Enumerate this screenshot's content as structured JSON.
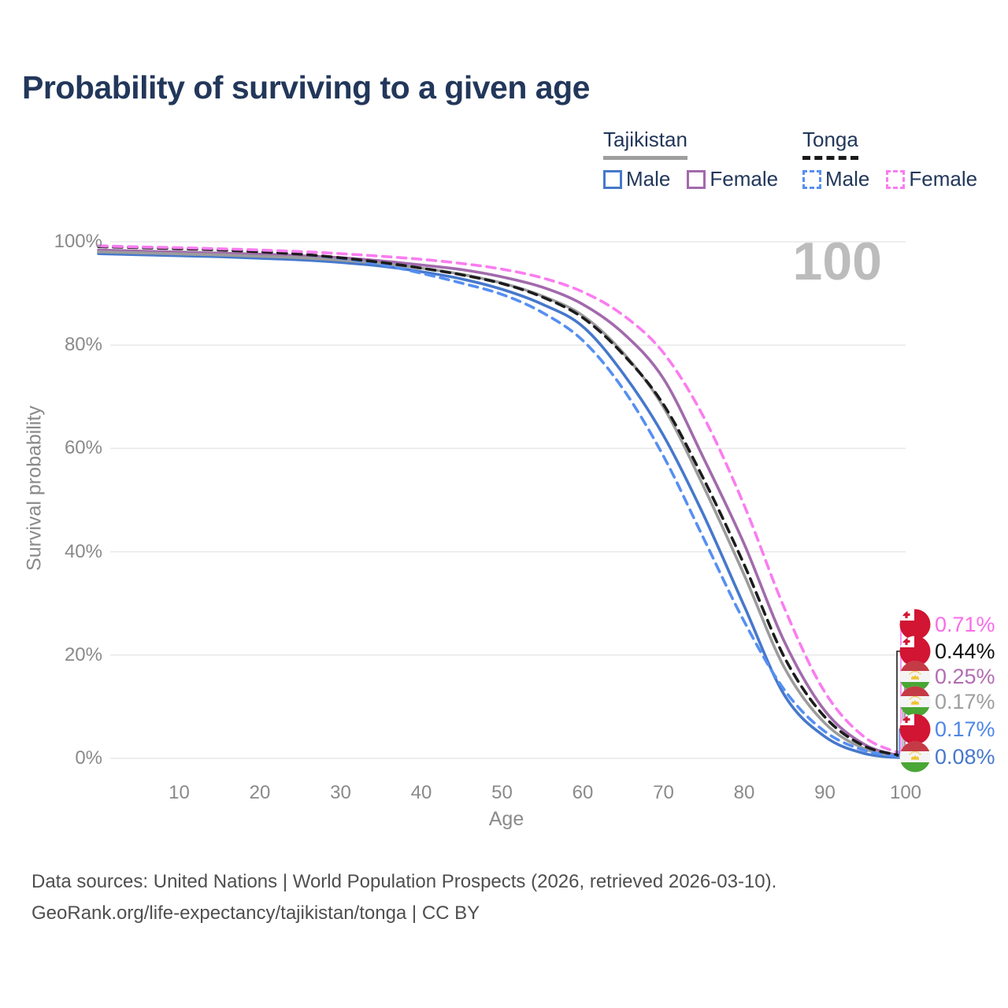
{
  "title": "Probability of surviving to a given age",
  "watermark": "100",
  "legend": {
    "groups": [
      {
        "label": "Tajikistan",
        "line_style": "solid",
        "underline_color": "#9e9e9e",
        "items": [
          {
            "label": "Male",
            "color": "#4678CC",
            "dashed": false
          },
          {
            "label": "Female",
            "color": "#A26AAC",
            "dashed": false
          }
        ]
      },
      {
        "label": "Tonga",
        "line_style": "dashed",
        "underline_color": "#1a1a1a",
        "items": [
          {
            "label": "Male",
            "color": "#568FF2",
            "dashed": true
          },
          {
            "label": "Female",
            "color": "#FA7CF0",
            "dashed": true
          }
        ]
      }
    ]
  },
  "chart_data": {
    "type": "line",
    "title": "Probability of surviving to a given age",
    "xlabel": "Age",
    "ylabel": "Survival probability",
    "xlim": [
      0,
      100
    ],
    "ylim": [
      0,
      100
    ],
    "grid": "horizontal",
    "legend_position": "top-right",
    "xticks": [
      10,
      20,
      30,
      40,
      50,
      60,
      70,
      80,
      90,
      100
    ],
    "ytick_values": [
      0,
      20,
      40,
      60,
      80,
      100
    ],
    "ytick_labels": [
      "0%",
      "20%",
      "40%",
      "60%",
      "80%",
      "100%"
    ],
    "x": [
      0,
      5,
      10,
      15,
      20,
      25,
      30,
      35,
      40,
      45,
      50,
      55,
      60,
      65,
      70,
      75,
      80,
      85,
      90,
      95,
      100
    ],
    "series": [
      {
        "name": "Tajikistan Male",
        "country": "Tajikistan",
        "sex": "Male",
        "color": "#4678CC",
        "dash": false,
        "end_label": "0.08%",
        "values": [
          97.7,
          97.5,
          97.3,
          97.1,
          96.8,
          96.5,
          96.0,
          95.3,
          94.2,
          92.8,
          90.8,
          87.9,
          83.6,
          74.5,
          62.5,
          47.0,
          29.5,
          12.2,
          4.2,
          0.9,
          0.08
        ]
      },
      {
        "name": "Tajikistan Female",
        "country": "Tajikistan",
        "sex": "Female",
        "color": "#A26AAC",
        "dash": false,
        "end_label": "0.25%",
        "values": [
          98.4,
          98.2,
          98.0,
          97.8,
          97.6,
          97.3,
          96.9,
          96.3,
          95.5,
          94.6,
          93.2,
          91.2,
          87.9,
          82.3,
          73.5,
          58.0,
          41.5,
          22.5,
          9.2,
          2.6,
          0.25
        ]
      },
      {
        "name": "Tajikistan Both sexes",
        "country": "Tajikistan",
        "sex": "Both",
        "color": "#9C9C9C",
        "dash": false,
        "end_label": "0.17%",
        "values": [
          98.05,
          97.85,
          97.65,
          97.45,
          97.2,
          96.9,
          96.45,
          95.8,
          94.9,
          93.7,
          92.0,
          89.5,
          85.7,
          78.5,
          68.0,
          52.5,
          35.5,
          17.5,
          6.8,
          1.8,
          0.17
        ]
      },
      {
        "name": "Tonga Male",
        "country": "Tonga",
        "sex": "Male",
        "color": "#568FF2",
        "dash": true,
        "end_label": "0.17%",
        "values": [
          99.2,
          99.0,
          98.8,
          98.5,
          98.1,
          97.6,
          96.8,
          95.6,
          93.9,
          92.0,
          89.8,
          86.3,
          80.9,
          71.5,
          58.5,
          42.5,
          26.5,
          13.2,
          5.2,
          1.5,
          0.17
        ]
      },
      {
        "name": "Tonga Both sexes",
        "country": "Tonga",
        "sex": "Both",
        "color": "#1C1C1C",
        "dash": true,
        "end_label": "0.44%",
        "values": [
          99.05,
          98.85,
          98.65,
          98.4,
          98.05,
          97.6,
          96.9,
          96.0,
          94.9,
          93.6,
          91.9,
          89.3,
          85.3,
          78.2,
          68.5,
          54.0,
          37.5,
          19.5,
          8.0,
          2.3,
          0.44
        ]
      },
      {
        "name": "Tonga Female",
        "country": "Tonga",
        "sex": "Female",
        "color": "#FA7CF0",
        "dash": true,
        "end_label": "0.71%",
        "values": [
          99.2,
          99.0,
          98.85,
          98.65,
          98.4,
          98.1,
          97.7,
          97.2,
          96.6,
          95.8,
          94.7,
          93.0,
          90.3,
          85.8,
          78.5,
          66.0,
          49.0,
          29.0,
          12.8,
          4.0,
          0.71
        ]
      }
    ]
  },
  "end_labels": [
    {
      "text": "0.71%",
      "series": "Tonga Female",
      "flag": "tonga",
      "color": "#FA6CE8"
    },
    {
      "text": "0.44%",
      "series": "Tonga Both sexes",
      "flag": "tonga",
      "color": "#111111"
    },
    {
      "text": "0.25%",
      "series": "Tajikistan Female",
      "flag": "tajikistan",
      "color": "#B26CB2"
    },
    {
      "text": "0.17%",
      "series": "Tajikistan Both sexes",
      "flag": "tajikistan",
      "color": "#9E9E9E"
    },
    {
      "text": "0.17%",
      "series": "Tonga Male",
      "flag": "tonga",
      "color": "#4E86E8"
    },
    {
      "text": "0.08%",
      "series": "Tajikistan Male",
      "flag": "tajikistan",
      "color": "#4678CC"
    }
  ],
  "footer": {
    "line1": "Data sources: United Nations | World Population Prospects (2026, retrieved 2026-03-10).",
    "line2": "GeoRank.org/life-expectancy/tajikistan/tonga | CC BY"
  }
}
